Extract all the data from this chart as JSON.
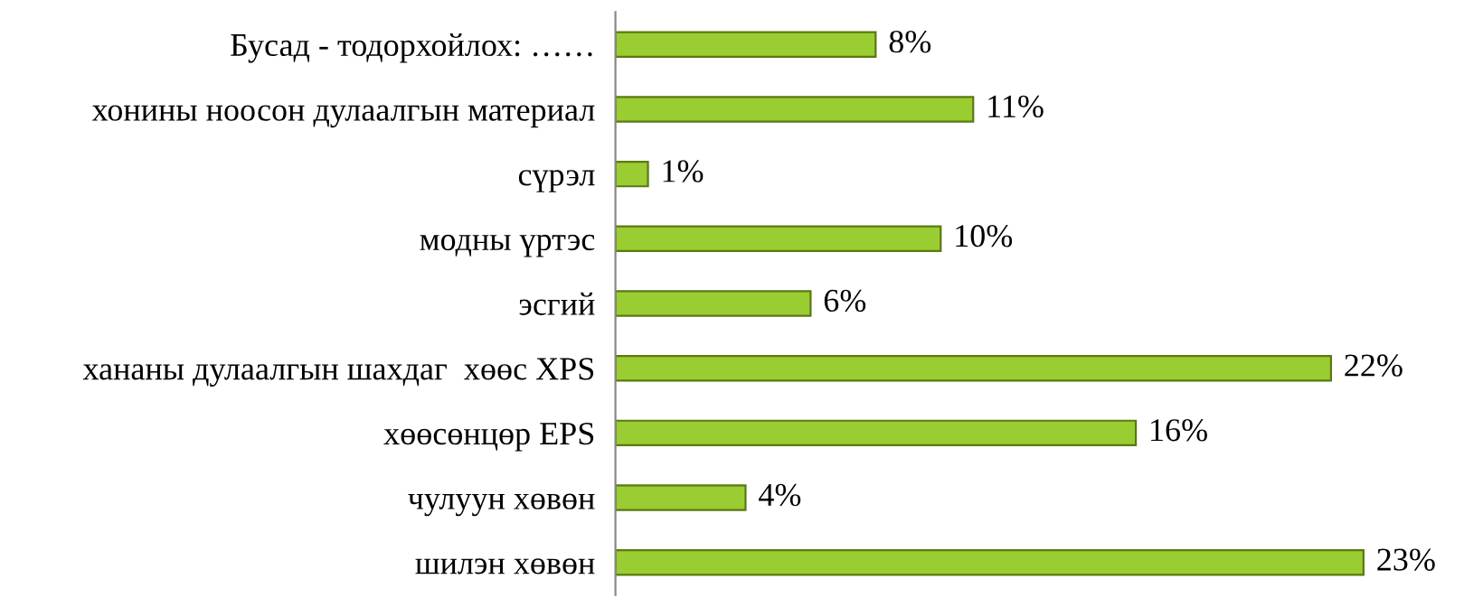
{
  "chart_data": {
    "type": "bar",
    "orientation": "horizontal",
    "categories": [
      "Бусад - тодорхойлох: ……",
      "хонины ноосон дулаалгын материал",
      "сүрэл",
      "модны үртэс",
      "эсгий",
      "хананы дулаалгын шахдаг  хөөс XPS",
      "хөөсөнцөр EPS",
      "чулуун хөвөн",
      "шилэн хөвөн"
    ],
    "values": [
      8,
      11,
      1,
      10,
      6,
      22,
      16,
      4,
      23
    ],
    "value_labels": [
      "8%",
      "11%",
      "1%",
      "10%",
      "6%",
      "22%",
      "16%",
      "4%",
      "23%"
    ],
    "color": "#9acd32",
    "tick_labels": "y",
    "grid": false,
    "legend": false
  }
}
